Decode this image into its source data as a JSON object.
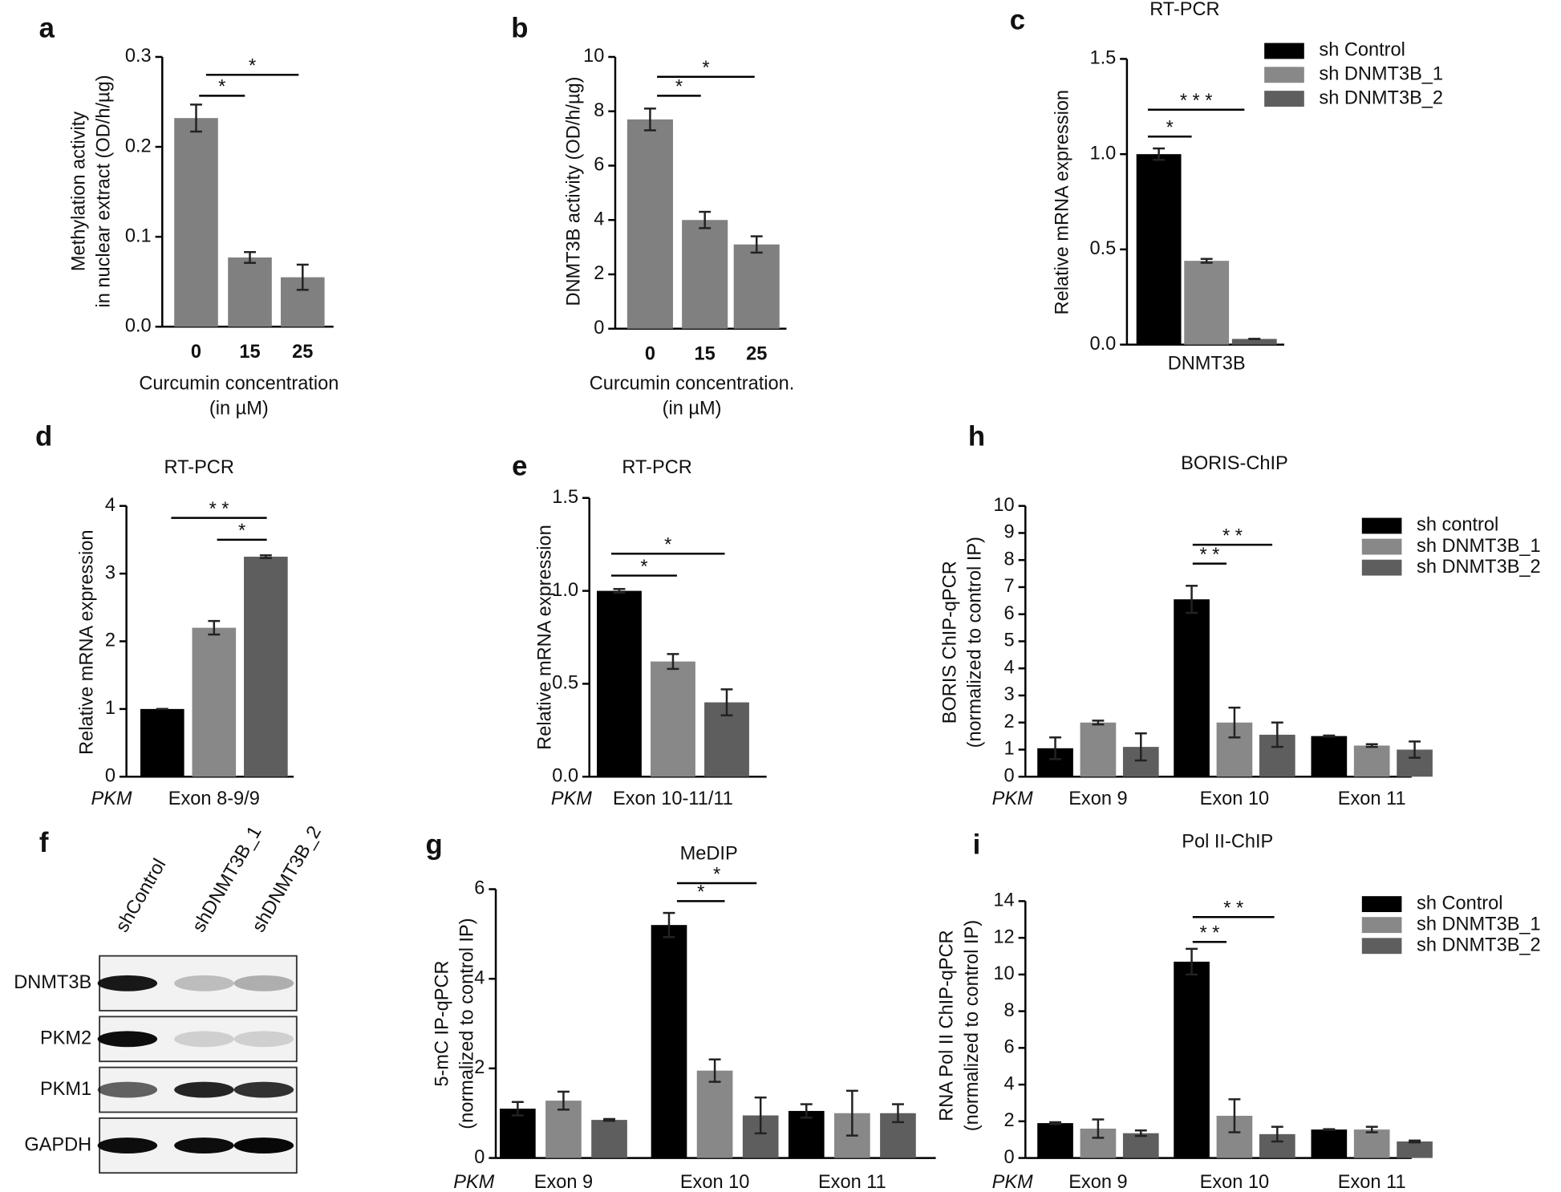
{
  "chart_data": [
    {
      "type": "bar",
      "panel": "a",
      "ylabel": [
        "Methylation activity",
        "in nuclear extract (OD/h/µg)"
      ],
      "xlabel": [
        "Curcumin concentration",
        "(in µM)"
      ],
      "categories": [
        "0",
        "15",
        "25"
      ],
      "series": [
        {
          "color": "#808080",
          "values": [
            0.232,
            0.077,
            0.055
          ],
          "errors": [
            0.015,
            0.006,
            0.014
          ]
        }
      ],
      "ylim": [
        0,
        0.3
      ],
      "yticks": [
        {
          "value": 0,
          "label": "0.0"
        },
        0.1,
        0.2,
        0.3
      ],
      "annotations": [
        "*",
        "*"
      ]
    },
    {
      "type": "bar",
      "panel": "b",
      "ylabel": [
        "DNMT3B activity (OD/h/µg)"
      ],
      "xlabel": [
        "Curcumin concentration.",
        "(in µM)"
      ],
      "categories": [
        "0",
        "15",
        "25"
      ],
      "series": [
        {
          "color": "#808080",
          "values": [
            7.7,
            4.0,
            3.1
          ],
          "errors": [
            0.4,
            0.3,
            0.3
          ]
        }
      ],
      "ylim": [
        0,
        10
      ],
      "yticks": [
        0,
        2,
        4,
        6,
        8,
        10
      ],
      "annotations": [
        "*",
        "*"
      ]
    },
    {
      "type": "bar",
      "panel": "c",
      "title": "RT-PCR",
      "ylabel": [
        "Relative mRNA expression"
      ],
      "categories": [
        "DNMT3B"
      ],
      "series": [
        {
          "name": "sh Control",
          "color": "#000000",
          "values": [
            1.0
          ],
          "errors": [
            0.03
          ]
        },
        {
          "name": "sh DNMT3B_1",
          "color": "#888888",
          "values": [
            0.44
          ],
          "errors": [
            0.01
          ]
        },
        {
          "name": "sh DNMT3B_2",
          "color": "#5e5e5e",
          "values": [
            0.03
          ],
          "errors": [
            0
          ]
        }
      ],
      "ylim": [
        0,
        1.5
      ],
      "yticks": [
        {
          "value": 0,
          "label": "0.0"
        },
        0.5,
        {
          "value": 1,
          "label": "1.0"
        },
        1.5
      ],
      "legend": true,
      "annotations": [
        "*",
        "* * *"
      ]
    },
    {
      "type": "bar",
      "panel": "d",
      "title": "RT-PCR",
      "ylabel": [
        "Relative mRNA expression"
      ],
      "gene_label": "PKM",
      "categories": [
        "Exon 8-9/9"
      ],
      "series": [
        {
          "color": "#000000",
          "values": [
            1.0
          ],
          "errors": [
            0
          ]
        },
        {
          "color": "#888888",
          "values": [
            2.2
          ],
          "errors": [
            0.1
          ]
        },
        {
          "color": "#5e5e5e",
          "values": [
            3.25
          ],
          "errors": [
            0.02
          ]
        }
      ],
      "ylim": [
        0,
        4
      ],
      "yticks": [
        0,
        1,
        2,
        3,
        4
      ],
      "annotations": [
        "* *",
        "*"
      ]
    },
    {
      "type": "bar",
      "panel": "e",
      "title": "RT-PCR",
      "ylabel": [
        "Relative mRNA expression"
      ],
      "gene_label": "PKM",
      "categories": [
        "Exon 10-11/11"
      ],
      "series": [
        {
          "color": "#000000",
          "values": [
            1.0
          ],
          "errors": [
            0.01
          ]
        },
        {
          "color": "#888888",
          "values": [
            0.62
          ],
          "errors": [
            0.04
          ]
        },
        {
          "color": "#5e5e5e",
          "values": [
            0.4
          ],
          "errors": [
            0.07
          ]
        }
      ],
      "ylim": [
        0,
        1.5
      ],
      "yticks": [
        {
          "value": 0,
          "label": "0.0"
        },
        0.5,
        {
          "value": 1,
          "label": "1.0"
        },
        1.5
      ],
      "annotations": [
        "*",
        "*"
      ]
    },
    {
      "type": "bar",
      "panel": "h",
      "title": "BORIS-ChIP",
      "ylabel": [
        "BORIS ChIP-qPCR",
        "(normalized to control IP)"
      ],
      "gene_label": "PKM",
      "categories": [
        "Exon 9",
        "Exon 10",
        "Exon 11"
      ],
      "series": [
        {
          "name": "sh control",
          "color": "#000000",
          "values": [
            1.05,
            6.55,
            1.5
          ],
          "errors": [
            0.4,
            0.5,
            0.02
          ]
        },
        {
          "name": "sh DNMT3B_1",
          "color": "#888888",
          "values": [
            2.0,
            2.0,
            1.15
          ],
          "errors": [
            0.07,
            0.55,
            0.05
          ]
        },
        {
          "name": "sh DNMT3B_2",
          "color": "#5e5e5e",
          "values": [
            1.1,
            1.55,
            1.0
          ],
          "errors": [
            0.5,
            0.45,
            0.3
          ]
        }
      ],
      "ylim": [
        0,
        10
      ],
      "yticks": [
        0,
        1,
        2,
        3,
        4,
        5,
        6,
        7,
        8,
        9,
        10
      ],
      "legend": true,
      "annotations": [
        "* *",
        "* *"
      ]
    },
    {
      "type": "bar",
      "panel": "g",
      "title": "MeDIP",
      "ylabel": [
        "5-mC IP-qPCR",
        "(normalized to control IP)"
      ],
      "gene_label": "PKM",
      "categories": [
        "Exon 9",
        "Exon 10",
        "Exon 11"
      ],
      "series": [
        {
          "color": "#000000",
          "values": [
            1.1,
            5.2,
            1.05
          ],
          "errors": [
            0.15,
            0.27,
            0.15
          ]
        },
        {
          "color": "#888888",
          "values": [
            1.28,
            1.95,
            1.0
          ],
          "errors": [
            0.2,
            0.25,
            0.5
          ]
        },
        {
          "color": "#5e5e5e",
          "values": [
            0.85,
            0.95,
            1.0
          ],
          "errors": [
            0.02,
            0.4,
            0.2
          ]
        }
      ],
      "ylim": [
        0,
        6
      ],
      "yticks": [
        0,
        2,
        4,
        6
      ],
      "annotations": [
        "*",
        "*"
      ]
    },
    {
      "type": "bar",
      "panel": "i",
      "title": "Pol II-ChIP",
      "ylabel": [
        "RNA Pol II  ChIP-qPCR",
        "(normalized to control IP)"
      ],
      "gene_label": "PKM",
      "categories": [
        "Exon 9",
        "Exon 10",
        "Exon 11"
      ],
      "series": [
        {
          "name": "sh Control",
          "color": "#000000",
          "values": [
            1.9,
            10.7,
            1.55
          ],
          "errors": [
            0.05,
            0.7,
            0.02
          ]
        },
        {
          "name": "sh DNMT3B_1",
          "color": "#888888",
          "values": [
            1.6,
            2.3,
            1.55
          ],
          "errors": [
            0.5,
            0.9,
            0.15
          ]
        },
        {
          "name": "sh DNMT3B_2",
          "color": "#5e5e5e",
          "values": [
            1.35,
            1.3,
            0.9
          ],
          "errors": [
            0.15,
            0.4,
            0.05
          ]
        }
      ],
      "ylim": [
        0,
        14
      ],
      "yticks": [
        0,
        2,
        4,
        6,
        8,
        10,
        12,
        14
      ],
      "legend": true,
      "annotations": [
        "* *",
        "* *"
      ]
    }
  ],
  "blot": {
    "panel": "f",
    "lanes": [
      "shControl",
      "shDNMT3B_1",
      "shDNMT3B_2"
    ],
    "rows": [
      "DNMT3B",
      "PKM2",
      "PKM1",
      "GAPDH"
    ]
  }
}
